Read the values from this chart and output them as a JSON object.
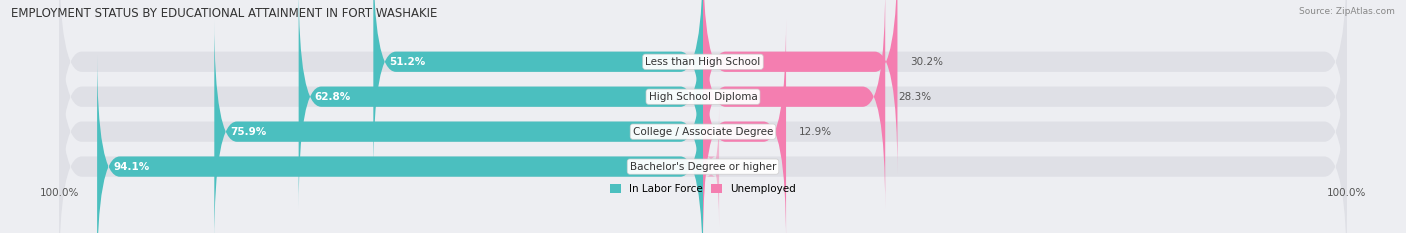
{
  "title": "EMPLOYMENT STATUS BY EDUCATIONAL ATTAINMENT IN FORT WASHAKIE",
  "source": "Source: ZipAtlas.com",
  "categories": [
    "Less than High School",
    "High School Diploma",
    "College / Associate Degree",
    "Bachelor's Degree or higher"
  ],
  "labor_force": [
    51.2,
    62.8,
    75.9,
    94.1
  ],
  "unemployed": [
    30.2,
    28.3,
    12.9,
    0.0
  ],
  "labor_force_color": "#4bbfbf",
  "unemployed_color": "#f47eb0",
  "background_color": "#edeef2",
  "bar_bg_color": "#dfe0e6",
  "bar_height": 0.58,
  "x_left_label": "100.0%",
  "x_right_label": "100.0%",
  "legend_labor": "In Labor Force",
  "legend_unemployed": "Unemployed",
  "title_fontsize": 8.5,
  "label_fontsize": 7.5,
  "cat_fontsize": 7.5,
  "source_fontsize": 6.5,
  "legend_fontsize": 7.5,
  "max_val": 100.0
}
